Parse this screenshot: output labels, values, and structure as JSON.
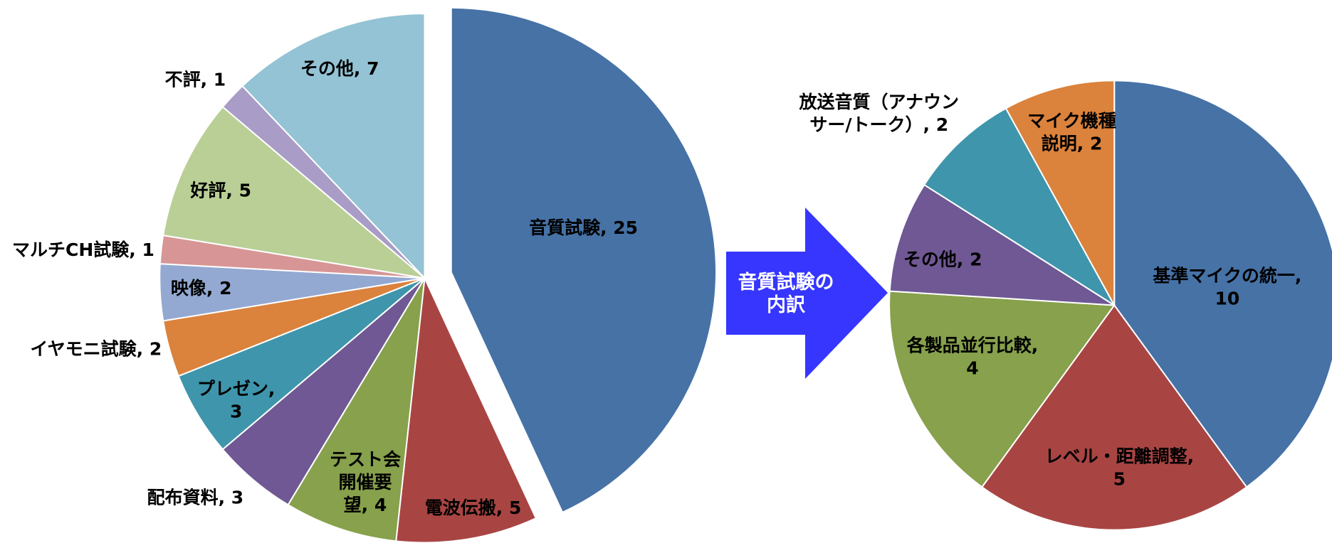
{
  "chart_data": [
    {
      "type": "pie",
      "categories": [
        "音質試験",
        "電波伝搬",
        "テスト会開催要望",
        "配布資料",
        "プレゼン",
        "イヤモニ試験",
        "映像",
        "マルチCH試験",
        "好評",
        "不評",
        "その他"
      ],
      "values": [
        25,
        5,
        4,
        3,
        3,
        2,
        2,
        1,
        5,
        1,
        7
      ],
      "value_labels": [
        "音質試験, 25",
        "電波伝搬, 5",
        "テスト会\n開催要\n望, 4",
        "配布資料, 3",
        "プレゼン,\n3",
        "イヤモニ試験, 2",
        "映像, 2",
        "マルチCH試験, 1",
        "好評, 5",
        "不評, 1",
        "その他, 7"
      ],
      "colors": [
        "#4672a6",
        "#a84543",
        "#87a14c",
        "#6f5893",
        "#3f95ac",
        "#db823c",
        "#93a9d2",
        "#d79695",
        "#b9cf96",
        "#a99cc6",
        "#93c3d4"
      ]
    },
    {
      "type": "pie",
      "categories": [
        "基準マイクの統一",
        "レベル・距離調整",
        "各製品並行比較",
        "その他",
        "放送音質（アナウンサー/トーク）",
        "マイク機種説明"
      ],
      "values": [
        10,
        5,
        4,
        2,
        2,
        2
      ],
      "value_labels": [
        "基準マイクの統一,\n10",
        "レベル・距離調整,\n5",
        "各製品並行比較,\n4",
        "その他, 2",
        "放送音質（アナウン\nサー/トーク）, 2",
        "マイク機種\n説明, 2"
      ],
      "colors": [
        "#4672a6",
        "#a84543",
        "#87a14c",
        "#6f5893",
        "#3f95ac",
        "#db823c"
      ]
    }
  ],
  "annotation": "音質試験の\n内訳"
}
